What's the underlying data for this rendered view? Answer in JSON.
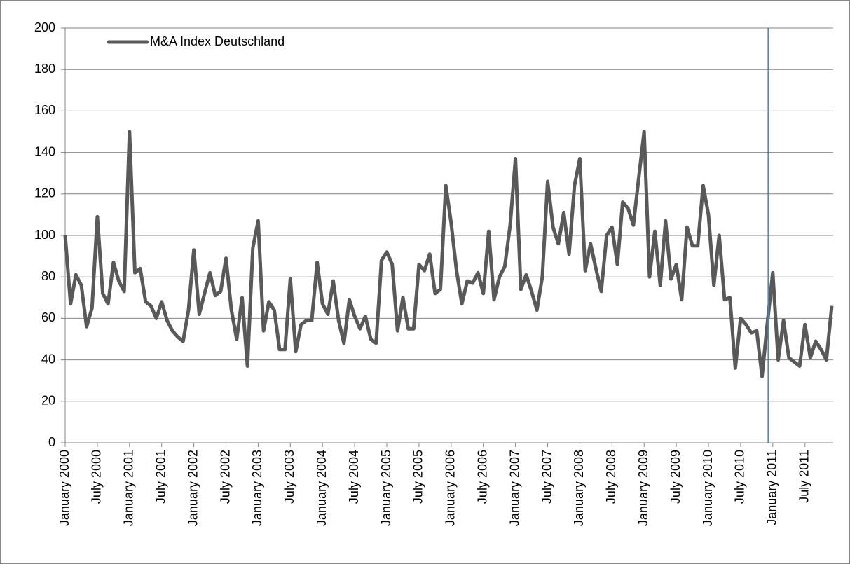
{
  "chart_data": {
    "type": "line",
    "categories": [
      "January 2000",
      null,
      null,
      null,
      null,
      null,
      "July 2000",
      null,
      null,
      null,
      null,
      null,
      "January 2001",
      null,
      null,
      null,
      null,
      null,
      "July 2001",
      null,
      null,
      null,
      null,
      null,
      "January 2002",
      null,
      null,
      null,
      null,
      null,
      "July 2002",
      null,
      null,
      null,
      null,
      null,
      "January 2003",
      null,
      null,
      null,
      null,
      null,
      "July 2003",
      null,
      null,
      null,
      null,
      null,
      "January 2004",
      null,
      null,
      null,
      null,
      null,
      "July 2004",
      null,
      null,
      null,
      null,
      null,
      "January 2005",
      null,
      null,
      null,
      null,
      null,
      "July 2005",
      null,
      null,
      null,
      null,
      null,
      "January 2006",
      null,
      null,
      null,
      null,
      null,
      "July 2006",
      null,
      null,
      null,
      null,
      null,
      "January 2007",
      null,
      null,
      null,
      null,
      null,
      "July 2007",
      null,
      null,
      null,
      null,
      null,
      "January 2008",
      null,
      null,
      null,
      null,
      null,
      "July 2008",
      null,
      null,
      null,
      null,
      null,
      "January 2009",
      null,
      null,
      null,
      null,
      null,
      "July 2009",
      null,
      null,
      null,
      null,
      null,
      "January 2010",
      null,
      null,
      null,
      null,
      null,
      "July 2010",
      null,
      null,
      null,
      null,
      null,
      "January 2011",
      null,
      null,
      null,
      null,
      null,
      "July 2011",
      null,
      null,
      null,
      null,
      null
    ],
    "series": [
      {
        "name": "M&A Index Deutschland",
        "color": "#595959",
        "values": [
          100,
          67,
          81,
          76,
          56,
          65,
          109,
          72,
          67,
          87,
          78,
          73,
          150,
          82,
          84,
          68,
          66,
          60,
          68,
          59,
          54,
          51,
          49,
          64,
          93,
          62,
          72,
          82,
          71,
          73,
          89,
          64,
          50,
          70,
          37,
          94,
          107,
          54,
          68,
          64,
          45,
          45,
          79,
          44,
          57,
          59,
          59,
          87,
          67,
          62,
          78,
          59,
          48,
          69,
          61,
          55,
          61,
          50,
          48,
          88,
          92,
          86,
          54,
          70,
          55,
          55,
          86,
          83,
          91,
          72,
          74,
          124,
          106,
          83,
          67,
          78,
          77,
          82,
          72,
          102,
          69,
          80,
          85,
          105,
          137,
          74,
          81,
          73,
          64,
          80,
          126,
          104,
          96,
          111,
          91,
          124,
          137,
          83,
          96,
          84,
          73,
          100,
          104,
          86,
          116,
          113,
          105,
          128,
          150,
          80,
          102,
          76,
          107,
          79,
          86,
          69,
          104,
          95,
          95,
          124,
          110,
          76,
          100,
          69,
          70,
          36,
          60,
          57,
          53,
          54,
          32,
          58,
          82,
          40,
          59,
          41,
          39,
          37,
          57,
          41,
          49,
          45,
          40,
          66
        ]
      }
    ],
    "ylim": [
      0,
      200
    ],
    "yticks": [
      0,
      20,
      40,
      60,
      80,
      100,
      120,
      140,
      160,
      180,
      200
    ],
    "grid": true,
    "legend": "top-left",
    "reference_line": {
      "index": 131,
      "color": "#4a7ebb"
    }
  }
}
